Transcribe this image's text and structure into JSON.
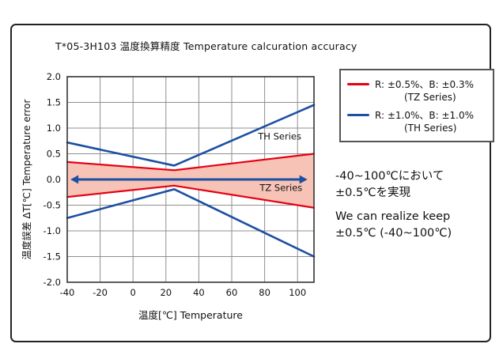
{
  "legend": {
    "items": [
      {
        "label": "R: ±0.5%、B: ±0.3%",
        "sub": "(TZ Series)",
        "color": "#e60012"
      },
      {
        "label": "R: ±1.0%、B: ±1.0%",
        "sub": "(TH Series)",
        "color": "#1d50a2"
      }
    ]
  },
  "notes": {
    "jp_line1": "-40~100℃において",
    "jp_line2": "±0.5℃を実現",
    "en_line1": "We can realize keep",
    "en_line2": "±0.5℃ (-40~100℃)"
  },
  "chart_data": {
    "type": "line",
    "title": "T*05-3H103 温度換算精度  Temperature calcuration accuracy",
    "xlabel": "温度[℃]  Temperature",
    "ylabel": "温度誤差 ΔT[℃]  Temperature error",
    "xlim": [
      -40,
      110
    ],
    "ylim": [
      -2.0,
      2.0
    ],
    "grid": true,
    "x_ticks": [
      -40,
      -20,
      0,
      20,
      40,
      60,
      80,
      100
    ],
    "y_ticks": [
      {
        "v": 2.0,
        "label": "2.0"
      },
      {
        "v": 1.5,
        "label": "1.5"
      },
      {
        "v": 1.0,
        "label": "1.0"
      },
      {
        "v": 0.5,
        "label": "0.5"
      },
      {
        "v": 0.0,
        "label": "0.0"
      },
      {
        "v": -0.5,
        "label": "-0.5"
      },
      {
        "v": -1.0,
        "label": "-1.0"
      },
      {
        "v": -1.5,
        "label": "-1.5"
      },
      {
        "v": -2.0,
        "label": "-2.0"
      }
    ],
    "series": [
      {
        "id": "th-upper",
        "name": "TH Series upper limit",
        "color": "#1d50a2",
        "width": 2.6,
        "points": [
          [
            -40,
            0.72
          ],
          [
            25,
            0.27
          ],
          [
            110,
            1.45
          ]
        ]
      },
      {
        "id": "th-lower",
        "name": "TH Series lower limit",
        "color": "#1d50a2",
        "width": 2.6,
        "points": [
          [
            -40,
            -0.75
          ],
          [
            25,
            -0.19
          ],
          [
            110,
            -1.5
          ]
        ]
      },
      {
        "id": "tz-upper",
        "name": "TZ Series upper limit",
        "color": "#e60012",
        "width": 2.2,
        "points": [
          [
            -40,
            0.34
          ],
          [
            25,
            0.18
          ],
          [
            110,
            0.5
          ]
        ]
      },
      {
        "id": "tz-lower",
        "name": "TZ Series lower limit",
        "color": "#e60012",
        "width": 2.2,
        "points": [
          [
            -40,
            -0.34
          ],
          [
            25,
            -0.12
          ],
          [
            110,
            -0.55
          ]
        ]
      }
    ],
    "band": {
      "upper": 2,
      "lower": 3,
      "fill": "#f6c3b6"
    },
    "arrow": {
      "y": 0,
      "x1": -38,
      "x2": 106,
      "color": "#1d50a2"
    },
    "annotations": [
      {
        "text": "TH Series",
        "x": 76,
        "y": 0.78
      },
      {
        "text": "TZ Series",
        "x": 77,
        "y": -0.22
      }
    ]
  }
}
